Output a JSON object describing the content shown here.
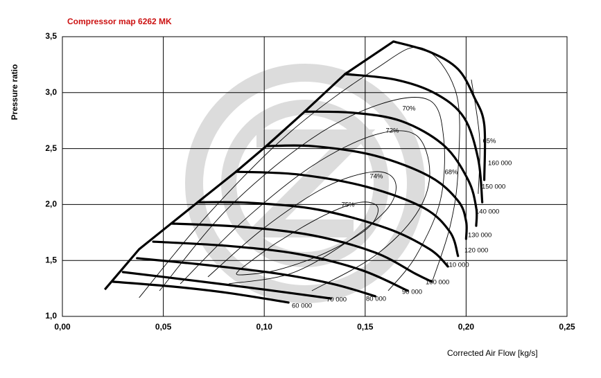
{
  "chart_data": {
    "type": "line",
    "title": "Compressor map 6262 MK",
    "x_label": "Corrected Air Flow [kg/s]",
    "y_label": "Pressure ratio",
    "xlim": [
      0,
      0.25
    ],
    "ylim": [
      1.0,
      3.5
    ],
    "xticks": [
      {
        "value": 0,
        "label": "0,00"
      },
      {
        "value": 0.05,
        "label": "0,05"
      },
      {
        "value": 0.1,
        "label": "0,10"
      },
      {
        "value": 0.15,
        "label": "0,15"
      },
      {
        "value": 0.2,
        "label": "0,20"
      },
      {
        "value": 0.25,
        "label": "0,25"
      }
    ],
    "yticks": [
      {
        "value": 1.0,
        "label": "1,0"
      },
      {
        "value": 1.5,
        "label": "1,5"
      },
      {
        "value": 2.0,
        "label": "2,0"
      },
      {
        "value": 2.5,
        "label": "2,5"
      },
      {
        "value": 3.0,
        "label": "3,0"
      },
      {
        "value": 3.5,
        "label": "3,5"
      }
    ],
    "grid": true,
    "color": "#000000",
    "series": [
      {
        "name": "60 000",
        "x": [
          0.025,
          0.055,
          0.082,
          0.112
        ],
        "values": [
          1.31,
          1.266,
          1.21,
          1.124
        ]
      },
      {
        "name": "70 000",
        "x": [
          0.03,
          0.065,
          0.1,
          0.133
        ],
        "values": [
          1.396,
          1.32,
          1.24,
          1.16
        ]
      },
      {
        "name": "80 000",
        "x": [
          0.037,
          0.072,
          0.106,
          0.134,
          0.155
        ],
        "values": [
          1.52,
          1.458,
          1.384,
          1.29,
          1.18
        ]
      },
      {
        "name": "90 000",
        "x": [
          0.045,
          0.082,
          0.117,
          0.148,
          0.171
        ],
        "values": [
          1.668,
          1.63,
          1.557,
          1.415,
          1.23
        ]
      },
      {
        "name": "100 000",
        "x": [
          0.054,
          0.089,
          0.124,
          0.155,
          0.175,
          0.183
        ],
        "values": [
          1.83,
          1.8,
          1.724,
          1.57,
          1.38,
          1.31
        ]
      },
      {
        "name": "110 000",
        "x": [
          0.067,
          0.093,
          0.127,
          0.161,
          0.182,
          0.191
        ],
        "values": [
          2.02,
          2.015,
          1.953,
          1.786,
          1.6,
          1.446
        ]
      },
      {
        "name": "120 000",
        "x": [
          0.086,
          0.117,
          0.151,
          0.179,
          0.192,
          0.196
        ],
        "values": [
          2.293,
          2.268,
          2.157,
          1.97,
          1.755,
          1.54
        ]
      },
      {
        "name": "130 000",
        "x": [
          0.101,
          0.124,
          0.155,
          0.182,
          0.196,
          0.2,
          0.2
        ],
        "values": [
          2.522,
          2.522,
          2.436,
          2.25,
          2.033,
          1.85,
          1.693
        ]
      },
      {
        "name": "140 000",
        "x": [
          0.12,
          0.144,
          0.168,
          0.189,
          0.201,
          0.205,
          0.205
        ],
        "values": [
          2.83,
          2.82,
          2.745,
          2.528,
          2.22,
          1.97,
          1.81
        ]
      },
      {
        "name": "150 000",
        "x": [
          0.14,
          0.165,
          0.185,
          0.199,
          0.206,
          0.208
        ],
        "values": [
          3.166,
          3.116,
          2.99,
          2.776,
          2.405,
          2.02
        ]
      },
      {
        "name": "160 000",
        "x": [
          0.164,
          0.182,
          0.196,
          0.204,
          0.209,
          0.209
        ],
        "values": [
          3.457,
          3.364,
          3.21,
          2.96,
          2.714,
          2.22
        ]
      }
    ],
    "surge_line": {
      "x": [
        0.021,
        0.038,
        0.067,
        0.086,
        0.101,
        0.12,
        0.14,
        0.164
      ],
      "values": [
        1.24,
        1.6,
        2.02,
        2.293,
        2.522,
        2.83,
        3.166,
        3.457
      ]
    },
    "efficiency_contours": [
      {
        "name": "75%",
        "x": [
          0.0876,
          0.1065,
          0.1305,
          0.1477,
          0.1563,
          0.1511,
          0.1305,
          0.1065,
          0.0876,
          0.0876
        ],
        "values": [
          1.415,
          1.662,
          1.91,
          2.02,
          1.97,
          1.786,
          1.569,
          1.415,
          1.371,
          1.415
        ]
      },
      {
        "name": "74%",
        "x": [
          0.0721,
          0.0996,
          0.1305,
          0.1545,
          0.1648,
          0.1614,
          0.1408,
          0.1133,
          0.0824
        ],
        "values": [
          1.353,
          1.786,
          2.157,
          2.293,
          2.207,
          1.972,
          1.662,
          1.384,
          1.291
        ]
      },
      {
        "name": "72%",
        "x": [
          0.0584,
          0.0893,
          0.1236,
          0.1545,
          0.1751,
          0.182,
          0.1751,
          0.1545,
          0.1236
        ],
        "values": [
          1.291,
          1.848,
          2.343,
          2.621,
          2.621,
          2.281,
          1.91,
          1.538,
          1.229
        ]
      },
      {
        "name": "70%",
        "x": [
          0.0481,
          0.0824,
          0.1236,
          0.158,
          0.182,
          0.1889,
          0.1872,
          0.1751,
          0.1614
        ],
        "values": [
          1.229,
          1.972,
          2.59,
          2.9,
          2.93,
          2.59,
          2.033,
          1.538,
          1.229
        ]
      },
      {
        "name": "68%",
        "x": [
          0.038,
          0.0721,
          0.113,
          0.155,
          0.178,
          0.195,
          0.196,
          0.192,
          0.183
        ],
        "values": [
          1.167,
          1.91,
          2.65,
          3.21,
          3.4,
          3.0,
          2.3,
          1.8,
          1.3
        ]
      },
      {
        "name": "65%",
        "x": [
          0.2026,
          0.2067,
          0.206
        ],
        "values": [
          3.116,
          2.59,
          2.095
        ]
      }
    ]
  }
}
